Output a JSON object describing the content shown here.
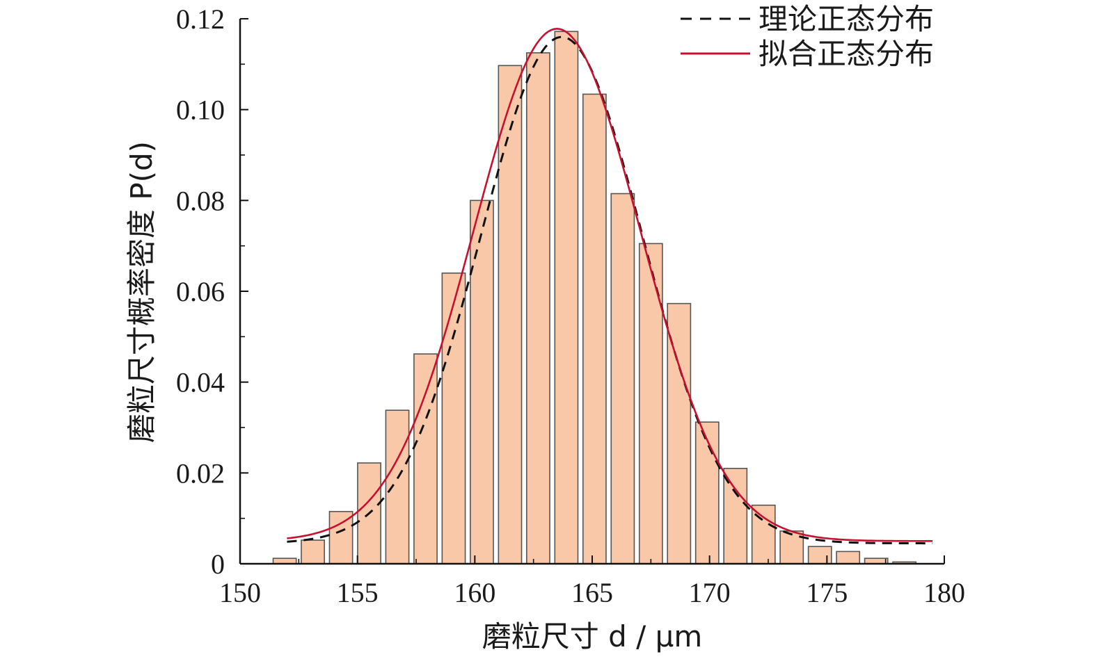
{
  "chart_data": {
    "type": "bar",
    "title": "",
    "xlabel": "磨粒尺寸 d / μm",
    "ylabel": "磨粒尺寸概率密度 P(d)",
    "xlim": [
      150,
      180
    ],
    "ylim": [
      0,
      0.12
    ],
    "x_ticks": [
      "150",
      "155",
      "160",
      "165",
      "170",
      "175",
      "180"
    ],
    "y_ticks": [
      "0",
      "0.02",
      "0.04",
      "0.06",
      "0.08",
      "0.10",
      "0.12"
    ],
    "bin_width": 1.2,
    "bars": [
      {
        "x": 151.9,
        "y": 0.0012
      },
      {
        "x": 153.1,
        "y": 0.0052
      },
      {
        "x": 154.3,
        "y": 0.0115
      },
      {
        "x": 155.5,
        "y": 0.0222
      },
      {
        "x": 156.7,
        "y": 0.0338
      },
      {
        "x": 157.9,
        "y": 0.0462
      },
      {
        "x": 159.1,
        "y": 0.064
      },
      {
        "x": 160.3,
        "y": 0.08
      },
      {
        "x": 161.5,
        "y": 0.1097
      },
      {
        "x": 162.7,
        "y": 0.1125
      },
      {
        "x": 163.9,
        "y": 0.1172
      },
      {
        "x": 165.1,
        "y": 0.1034
      },
      {
        "x": 166.3,
        "y": 0.0815
      },
      {
        "x": 167.5,
        "y": 0.0705
      },
      {
        "x": 168.7,
        "y": 0.0573
      },
      {
        "x": 169.9,
        "y": 0.0312
      },
      {
        "x": 171.1,
        "y": 0.021
      },
      {
        "x": 172.3,
        "y": 0.0129
      },
      {
        "x": 173.5,
        "y": 0.0072
      },
      {
        "x": 174.7,
        "y": 0.0038
      },
      {
        "x": 175.9,
        "y": 0.0027
      },
      {
        "x": 177.1,
        "y": 0.0012
      },
      {
        "x": 178.3,
        "y": 0.0004
      }
    ],
    "series": [
      {
        "name": "理论正态分布",
        "style": "dashed",
        "color": "#111111",
        "mean": 163.7,
        "peak": 0.1115,
        "sigma": 3.45,
        "baseline": 0.0045,
        "x_range": [
          152,
          179.5
        ]
      },
      {
        "name": "拟合正态分布",
        "style": "solid",
        "color": "#c8102e",
        "mean": 163.5,
        "peak": 0.1128,
        "sigma": 3.55,
        "baseline": 0.005,
        "x_range": [
          152,
          179.5
        ]
      }
    ],
    "legend_position": "top-right",
    "bar_fill": "#f9c8a8",
    "bar_stroke": "#555555",
    "grid": false
  }
}
